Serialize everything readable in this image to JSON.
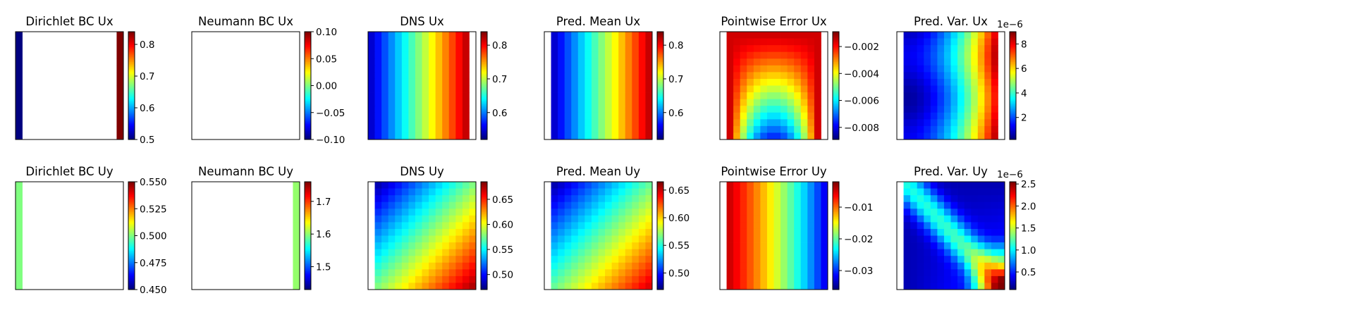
{
  "chart_data": [
    {
      "type": "heatmap",
      "title": "Dirichlet BC Ux",
      "field": "bc_dirichlet_x",
      "colorbar": {
        "vmin": 0.5,
        "vmax": 0.84,
        "ticks": [
          0.5,
          0.6,
          0.7,
          0.8
        ],
        "tick_labels": [
          "0.5",
          "0.6",
          "0.7",
          "0.8"
        ]
      }
    },
    {
      "type": "heatmap",
      "title": "Neumann BC Ux",
      "field": "empty",
      "colorbar": {
        "vmin": -0.1,
        "vmax": 0.1,
        "ticks": [
          -0.1,
          -0.05,
          0.0,
          0.05,
          0.1
        ],
        "tick_labels": [
          "−0.10",
          "−0.05",
          "0.00",
          "0.05",
          "0.10"
        ]
      }
    },
    {
      "type": "heatmap",
      "title": "DNS Ux",
      "field": "dns_x",
      "colorbar": {
        "vmin": 0.52,
        "vmax": 0.84,
        "ticks": [
          0.6,
          0.7,
          0.8
        ],
        "tick_labels": [
          "0.6",
          "0.7",
          "0.8"
        ]
      }
    },
    {
      "type": "heatmap",
      "title": "Pred. Mean Ux",
      "field": "pred_x",
      "colorbar": {
        "vmin": 0.52,
        "vmax": 0.84,
        "ticks": [
          0.6,
          0.7,
          0.8
        ],
        "tick_labels": [
          "0.6",
          "0.7",
          "0.8"
        ]
      }
    },
    {
      "type": "heatmap",
      "title": "Pointwise Error Ux",
      "field": "err_x",
      "colorbar": {
        "vmin": -0.0089,
        "vmax": -0.0009,
        "ticks": [
          -0.008,
          -0.006,
          -0.004,
          -0.002
        ],
        "tick_labels": [
          "−0.008",
          "−0.006",
          "−0.004",
          "−0.002"
        ]
      }
    },
    {
      "type": "heatmap",
      "title": "Pred. Var. Ux",
      "field": "var_x",
      "offset_label": "1e−6",
      "colorbar": {
        "vmin": 0.2,
        "vmax": 9.0,
        "ticks": [
          2,
          4,
          6,
          8
        ],
        "tick_labels": [
          "2",
          "4",
          "6",
          "8"
        ]
      }
    },
    {
      "type": "heatmap",
      "title": "Dirichlet BC Uy",
      "field": "bc_dirichlet_y",
      "colorbar": {
        "vmin": 0.45,
        "vmax": 0.55,
        "ticks": [
          0.45,
          0.475,
          0.5,
          0.525,
          0.55
        ],
        "tick_labels": [
          "0.450",
          "0.475",
          "0.500",
          "0.525",
          "0.550"
        ]
      }
    },
    {
      "type": "heatmap",
      "title": "Neumann BC Uy",
      "field": "bc_neumann_y",
      "colorbar": {
        "vmin": 1.43,
        "vmax": 1.76,
        "ticks": [
          1.5,
          1.6,
          1.7
        ],
        "tick_labels": [
          "1.5",
          "1.6",
          "1.7"
        ]
      }
    },
    {
      "type": "heatmap",
      "title": "DNS Uy",
      "field": "dns_y",
      "colorbar": {
        "vmin": 0.47,
        "vmax": 0.685,
        "ticks": [
          0.5,
          0.55,
          0.6,
          0.65
        ],
        "tick_labels": [
          "0.50",
          "0.55",
          "0.60",
          "0.65"
        ]
      }
    },
    {
      "type": "heatmap",
      "title": "Pred. Mean Uy",
      "field": "pred_y",
      "colorbar": {
        "vmin": 0.47,
        "vmax": 0.665,
        "ticks": [
          0.5,
          0.55,
          0.6,
          0.65
        ],
        "tick_labels": [
          "0.50",
          "0.55",
          "0.60",
          "0.65"
        ]
      }
    },
    {
      "type": "heatmap",
      "title": "Pointwise Error Uy",
      "field": "err_y",
      "colorbar": {
        "vmin": -0.036,
        "vmax": -0.002,
        "ticks": [
          -0.03,
          -0.02,
          -0.01
        ],
        "tick_labels": [
          "−0.03",
          "−0.02",
          "−0.01"
        ]
      }
    },
    {
      "type": "heatmap",
      "title": "Pred. Var. Uy",
      "field": "var_y",
      "offset_label": "1e−6",
      "colorbar": {
        "vmin": 0.1,
        "vmax": 2.55,
        "ticks": [
          0.5,
          1.0,
          1.5,
          2.0,
          2.5
        ],
        "tick_labels": [
          "0.5",
          "1.0",
          "1.5",
          "2.0",
          "2.5"
        ]
      }
    }
  ]
}
